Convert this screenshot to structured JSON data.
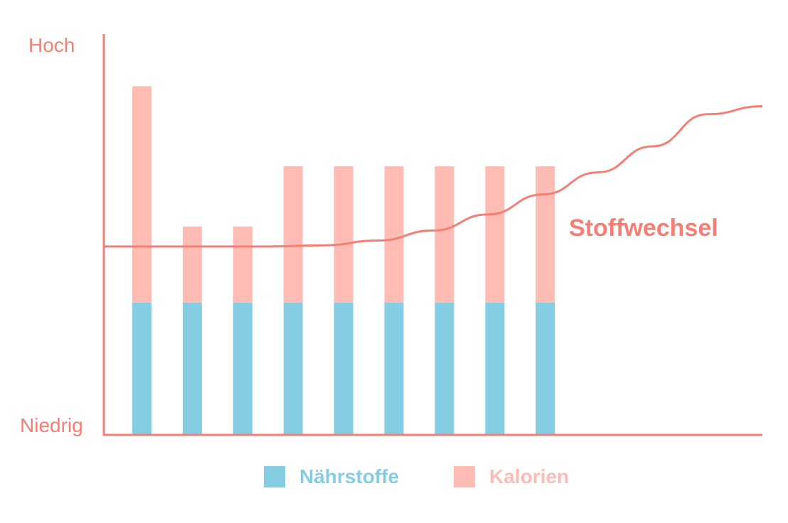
{
  "chart_data": {
    "type": "bar",
    "stacked": true,
    "y_tick_labels": {
      "high": "Hoch",
      "low": "Niedrig"
    },
    "ylim": [
      0,
      100
    ],
    "categories": [
      "",
      "",
      "",
      "",
      "",
      "",
      "",
      "",
      ""
    ],
    "series": [
      {
        "name": "Nährstoffe",
        "color": "#84cde3",
        "values": [
          33,
          33,
          33,
          33,
          33,
          33,
          33,
          33,
          33
        ]
      },
      {
        "name": "Kalorien",
        "color": "#ffbcb4",
        "values": [
          54,
          19,
          19,
          34,
          34,
          34,
          34,
          34,
          34
        ]
      }
    ],
    "curve": {
      "name": "Stoffwechsel",
      "color": "#f57f74",
      "x": [
        0,
        1,
        2,
        3,
        4,
        5,
        6,
        7,
        8,
        9,
        10,
        11,
        12
      ],
      "y": [
        47,
        47,
        47,
        47,
        47.3,
        48.5,
        51,
        55,
        60,
        65.5,
        72,
        80,
        82
      ]
    },
    "axis_color": "#f57f74",
    "label_color": "#f57f74",
    "grid": false,
    "legend_position": "bottom-center"
  }
}
